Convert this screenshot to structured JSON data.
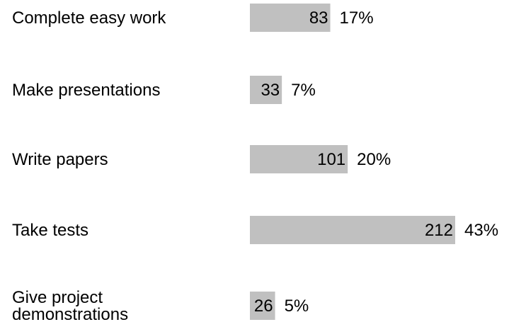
{
  "chart_data": {
    "type": "bar",
    "orientation": "horizontal",
    "categories": [
      [
        "Complete easy work"
      ],
      [
        "Make presentations"
      ],
      [
        "Write papers"
      ],
      [
        "Take tests"
      ],
      [
        "Give project",
        "demonstrations"
      ]
    ],
    "values": [
      83,
      33,
      101,
      212,
      26
    ],
    "percent_labels": [
      "17%",
      "7%",
      "20%",
      "43%",
      "5%"
    ],
    "grid": false,
    "legend": "none",
    "colors": {
      "bar": "#c0c0c0",
      "text": "#000000"
    }
  }
}
